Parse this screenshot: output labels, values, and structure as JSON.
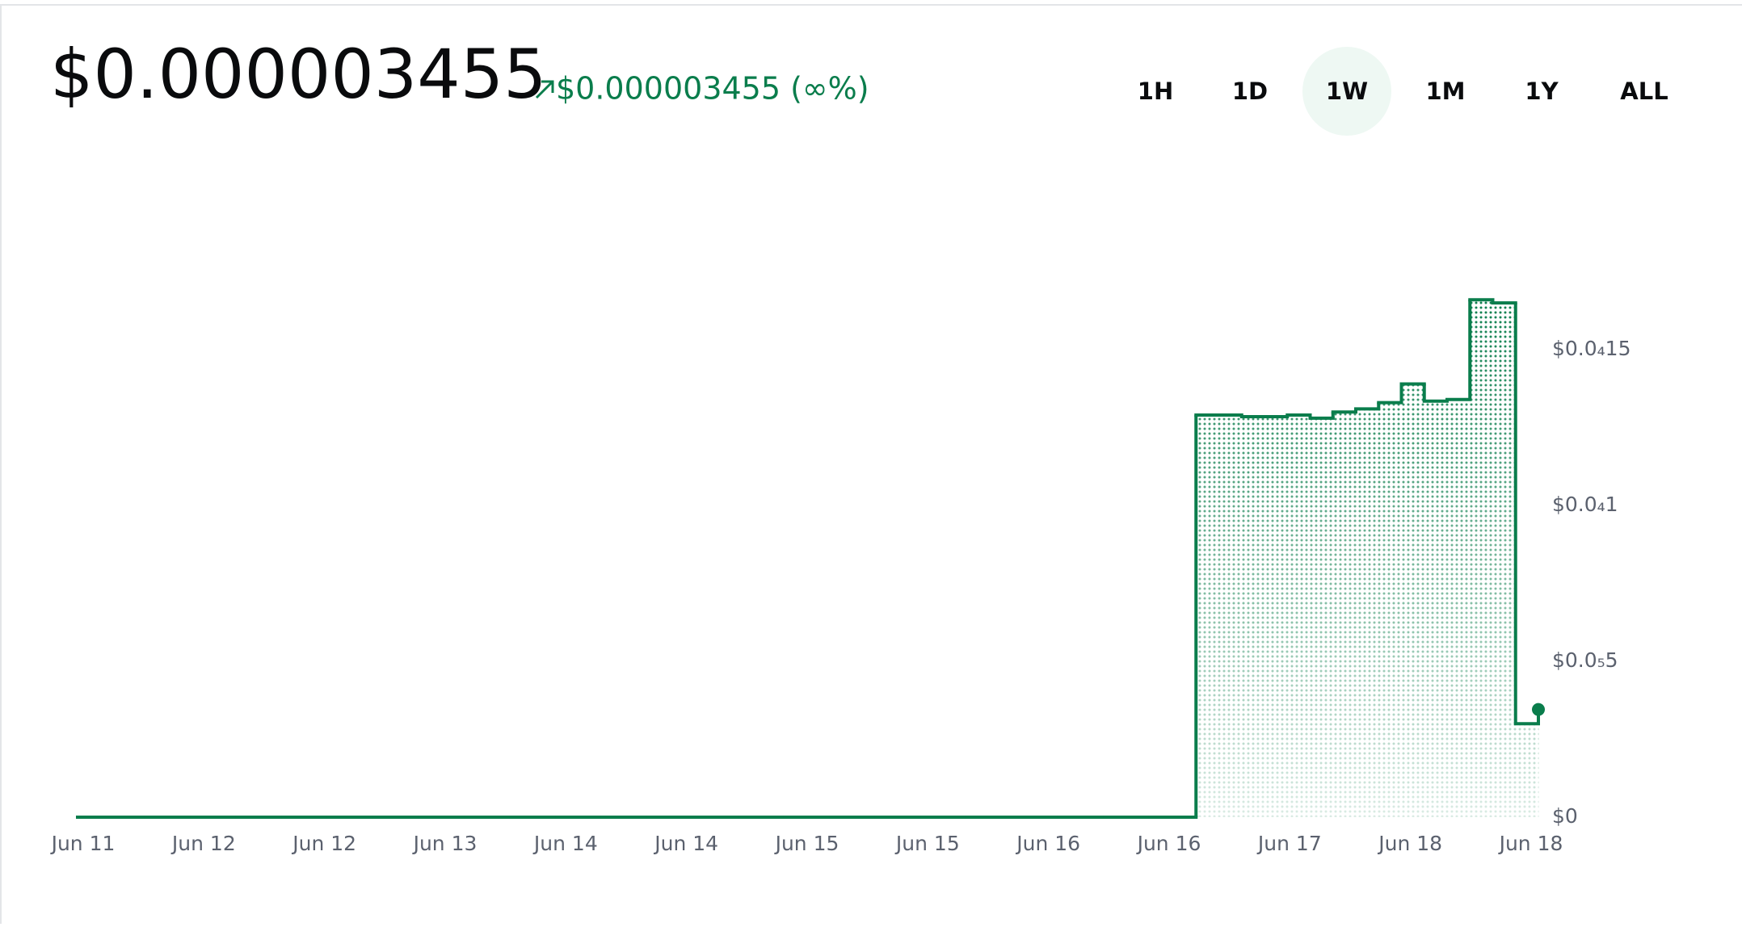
{
  "header": {
    "price": "$0.000003455",
    "change": "$0.000003455 (∞%)"
  },
  "timeframes": {
    "options": [
      "1H",
      "1D",
      "1W",
      "1M",
      "1Y",
      "ALL"
    ],
    "active": "1W"
  },
  "chart_data": {
    "type": "step-area",
    "color": "#0a7d4c",
    "x_labels": [
      "Jun 11",
      "Jun 12",
      "Jun 12",
      "Jun 13",
      "Jun 14",
      "Jun 14",
      "Jun 15",
      "Jun 15",
      "Jun 16",
      "Jun 16",
      "Jun 17",
      "Jun 18",
      "Jun 18"
    ],
    "ylim": [
      0,
      2e-05
    ],
    "yticks": [
      {
        "value": 0,
        "label": "$0"
      },
      {
        "value": 5e-06,
        "label": "$0.0₅5"
      },
      {
        "value": 1e-05,
        "label": "$0.0₄1"
      },
      {
        "value": 1.5e-05,
        "label": "$0.0₄15"
      }
    ],
    "values": [
      0,
      0,
      0,
      0,
      0,
      0,
      0,
      0,
      0,
      0,
      0,
      0,
      0,
      0,
      0,
      0,
      0,
      0,
      0,
      0,
      0,
      0,
      0,
      0,
      0,
      0,
      0,
      0,
      0,
      0,
      0,
      0,
      0,
      0,
      0,
      0,
      0,
      0,
      0,
      0,
      0,
      0,
      0,
      0,
      0,
      0,
      0,
      0,
      0,
      1.29e-05,
      1.29e-05,
      1.285e-05,
      1.285e-05,
      1.29e-05,
      1.28e-05,
      1.3e-05,
      1.31e-05,
      1.33e-05,
      1.39e-05,
      1.335e-05,
      1.34e-05,
      1.66e-05,
      1.65e-05,
      3e-06,
      3.455e-06
    ]
  }
}
